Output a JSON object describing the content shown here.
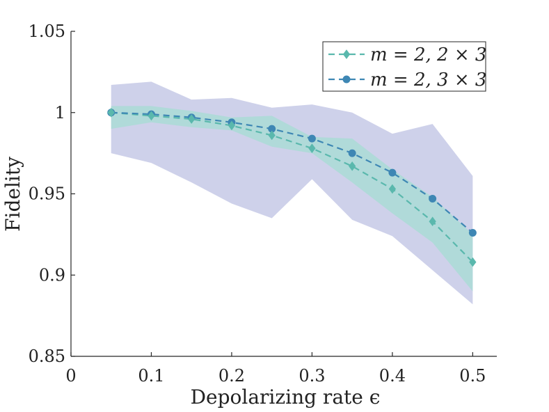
{
  "chart_data": {
    "type": "line",
    "xlabel": "Depolarizing rate ϵ",
    "ylabel": "Fidelity",
    "xlim": [
      0,
      0.53
    ],
    "ylim": [
      0.85,
      1.05
    ],
    "x_ticks": [
      0,
      0.1,
      0.2,
      0.3,
      0.4,
      0.5
    ],
    "x_tick_labels": [
      "0",
      "0.1",
      "0.2",
      "0.3",
      "0.4",
      "0.5"
    ],
    "y_ticks": [
      0.85,
      0.9,
      0.95,
      1,
      1.05
    ],
    "y_tick_labels": [
      "0.85",
      "0.9",
      "0.95",
      "1",
      "1.05"
    ],
    "grid": false,
    "legend_position": "top-right",
    "x": [
      0.05,
      0.1,
      0.15,
      0.2,
      0.25,
      0.3,
      0.35,
      0.4,
      0.45,
      0.5
    ],
    "series": [
      {
        "name": "m = 2, 2 × 3",
        "marker": "diamond",
        "color": "#5ab8ad",
        "values": [
          1.0,
          0.998,
          0.996,
          0.992,
          0.986,
          0.978,
          0.967,
          0.953,
          0.933,
          0.908
        ],
        "band_upper": [
          1.004,
          1.004,
          1.001,
          0.997,
          0.998,
          0.985,
          0.984,
          0.965,
          0.948,
          0.925
        ],
        "band_lower": [
          0.99,
          0.994,
          0.991,
          0.989,
          0.979,
          0.975,
          0.957,
          0.938,
          0.92,
          0.89
        ],
        "band_color": "#aadcd6"
      },
      {
        "name": "m = 2, 3 × 3",
        "marker": "circle",
        "color": "#3e87b4",
        "values": [
          1.0,
          0.999,
          0.997,
          0.994,
          0.99,
          0.984,
          0.975,
          0.963,
          0.947,
          0.926
        ],
        "band_upper": [
          1.017,
          1.019,
          1.008,
          1.009,
          1.003,
          1.005,
          1.0,
          0.987,
          0.993,
          0.961
        ],
        "band_lower": [
          0.975,
          0.969,
          0.957,
          0.944,
          0.935,
          0.959,
          0.934,
          0.924,
          0.903,
          0.882
        ],
        "band_color": "#c9cce8"
      }
    ]
  }
}
